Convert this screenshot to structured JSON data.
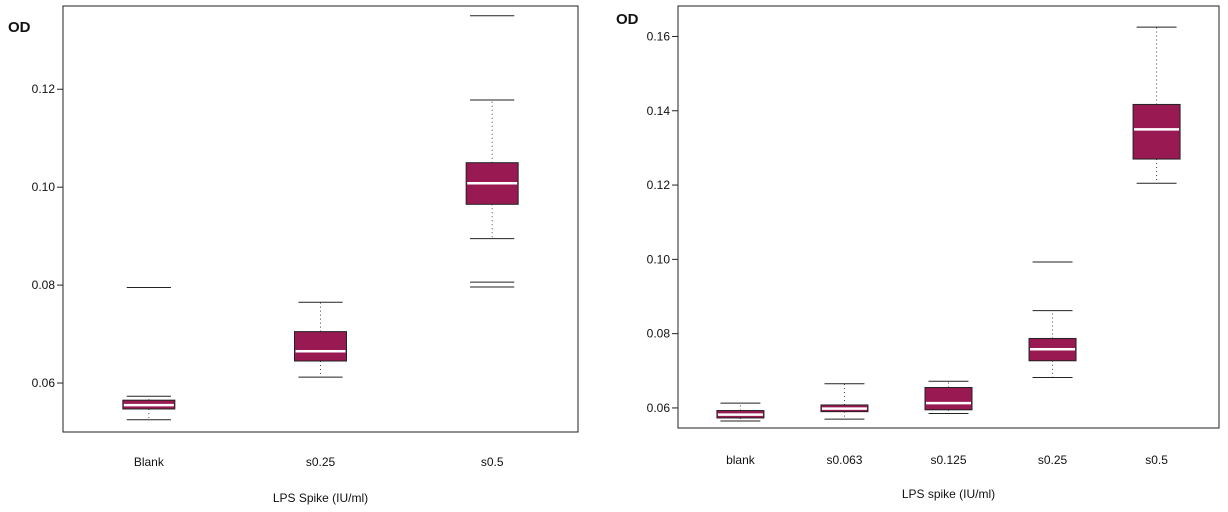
{
  "chart_data": [
    {
      "type": "box",
      "title": "",
      "xlabel": "LPS Spike (IU/ml)",
      "ylabel": "OD",
      "ylim": [
        0.05,
        0.137
      ],
      "yticks": [
        0.06,
        0.08,
        0.1,
        0.12
      ],
      "ytick_labels": [
        "0.06",
        "0.08",
        "0.10",
        "0.12"
      ],
      "grid": false,
      "box_color": "#991a52",
      "median_color": "#ffffff",
      "categories": [
        "Blank",
        "s0.25",
        "s0.5"
      ],
      "boxes": [
        {
          "category": "Blank",
          "whisker_low": 0.0525,
          "q1": 0.0547,
          "median": 0.0555,
          "q3": 0.0565,
          "whisker_high": 0.0573,
          "outliers": [
            0.0795
          ]
        },
        {
          "category": "s0.25",
          "whisker_low": 0.0612,
          "q1": 0.0645,
          "median": 0.0665,
          "q3": 0.0705,
          "whisker_high": 0.0765,
          "outliers": []
        },
        {
          "category": "s0.5",
          "whisker_low": 0.0895,
          "q1": 0.0965,
          "median": 0.1008,
          "q3": 0.105,
          "whisker_high": 0.1178,
          "outliers": [
            0.0796,
            0.0806,
            0.135
          ]
        }
      ]
    },
    {
      "type": "box",
      "title": "",
      "xlabel": "LPS spike (IU/ml)",
      "ylabel": "OD",
      "ylim": [
        0.0546,
        0.1682
      ],
      "yticks": [
        0.06,
        0.08,
        0.1,
        0.12,
        0.14,
        0.16
      ],
      "ytick_labels": [
        "0.06",
        "0.08",
        "0.10",
        "0.12",
        "0.14",
        "0.16"
      ],
      "grid": false,
      "box_color": "#991a52",
      "median_color": "#ffffff",
      "categories": [
        "blank",
        "s0.063",
        "s0.125",
        "s0.25",
        "s0.5"
      ],
      "boxes": [
        {
          "category": "blank",
          "whisker_low": 0.0565,
          "q1": 0.0573,
          "median": 0.0582,
          "q3": 0.0593,
          "whisker_high": 0.0613,
          "outliers": []
        },
        {
          "category": "s0.063",
          "whisker_low": 0.057,
          "q1": 0.059,
          "median": 0.0598,
          "q3": 0.0608,
          "whisker_high": 0.0665,
          "outliers": []
        },
        {
          "category": "s0.125",
          "whisker_low": 0.0585,
          "q1": 0.0595,
          "median": 0.0613,
          "q3": 0.0655,
          "whisker_high": 0.0672,
          "outliers": []
        },
        {
          "category": "s0.25",
          "whisker_low": 0.0682,
          "q1": 0.0727,
          "median": 0.0758,
          "q3": 0.0787,
          "whisker_high": 0.0862,
          "outliers": [
            0.0993
          ]
        },
        {
          "category": "s0.5",
          "whisker_low": 0.1205,
          "q1": 0.127,
          "median": 0.135,
          "q3": 0.1417,
          "whisker_high": 0.1625,
          "outliers": []
        }
      ]
    }
  ]
}
